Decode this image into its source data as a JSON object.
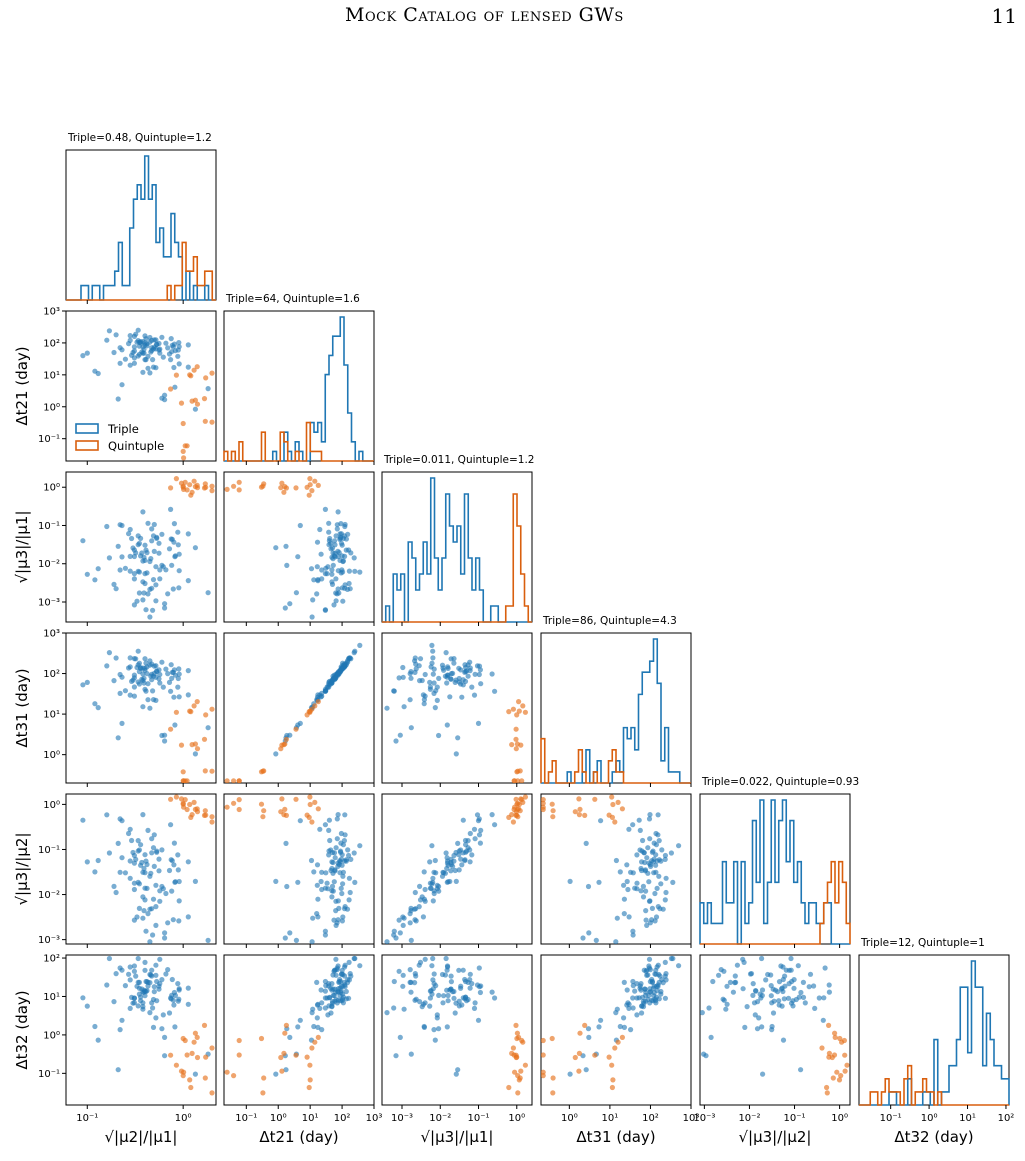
{
  "header": {
    "running_title": "Mock Catalog of lensed GWs",
    "page_number": "11"
  },
  "chart_data": {
    "type": "corner",
    "series": [
      {
        "name": "Triple",
        "color": "#1f77b4"
      },
      {
        "name": "Quintuple",
        "color": "#d95f0e"
      }
    ],
    "variables": [
      {
        "key": "mu21",
        "label": "√|μ2|/|μ1|",
        "scale": "log",
        "range": [
          0.06,
          2.2
        ],
        "ticks": [
          {
            "v": 0.1,
            "label": "10⁻¹"
          },
          {
            "v": 1,
            "label": "10⁰"
          }
        ]
      },
      {
        "key": "dt21",
        "label": "Δt21 (day)",
        "scale": "log",
        "range": [
          0.02,
          1000
        ],
        "ticks": [
          {
            "v": 0.1,
            "label": "10⁻¹"
          },
          {
            "v": 1,
            "label": "10⁰"
          },
          {
            "v": 10,
            "label": "10¹"
          },
          {
            "v": 100,
            "label": "10²"
          },
          {
            "v": 1000,
            "label": "10³"
          }
        ]
      },
      {
        "key": "mu31",
        "label": "√|μ3|/|μ1|",
        "scale": "log",
        "range": [
          0.0003,
          2.5
        ],
        "ticks": [
          {
            "v": 0.001,
            "label": "10⁻³"
          },
          {
            "v": 0.01,
            "label": "10⁻²"
          },
          {
            "v": 0.1,
            "label": "10⁻¹"
          },
          {
            "v": 1,
            "label": "10⁰"
          }
        ]
      },
      {
        "key": "dt31",
        "label": "Δt31 (day)",
        "scale": "log",
        "range": [
          0.2,
          1000
        ],
        "ticks": [
          {
            "v": 1,
            "label": "10⁰"
          },
          {
            "v": 10,
            "label": "10¹"
          },
          {
            "v": 100,
            "label": "10²"
          },
          {
            "v": 1000,
            "label": "10³"
          }
        ]
      },
      {
        "key": "mu32",
        "label": "√|μ3|/|μ2|",
        "scale": "log",
        "range": [
          0.0008,
          1.7
        ],
        "ticks": [
          {
            "v": 0.001,
            "label": "10⁻³"
          },
          {
            "v": 0.01,
            "label": "10⁻²"
          },
          {
            "v": 0.1,
            "label": "10⁻¹"
          },
          {
            "v": 1,
            "label": "10⁰"
          }
        ]
      },
      {
        "key": "dt32",
        "label": "Δt32 (day)",
        "scale": "log",
        "range": [
          0.015,
          120
        ],
        "ticks": [
          {
            "v": 0.1,
            "label": "10⁻¹"
          },
          {
            "v": 1,
            "label": "10⁰"
          },
          {
            "v": 10,
            "label": "10¹"
          },
          {
            "v": 100,
            "label": "10²"
          }
        ]
      }
    ],
    "diagonal_titles": [
      "Triple=0.48, Quintuple=1.2",
      "Triple=64, Quintuple=1.6",
      "Triple=0.011, Quintuple=1.2",
      "Triple=86, Quintuple=4.3",
      "Triple=0.022, Quintuple=0.93",
      "Triple=12, Quintuple=1"
    ],
    "legend": {
      "placement": "lower-left of panel Δt21 vs √|μ2|/|μ1|",
      "entries": [
        "Triple",
        "Quintuple"
      ]
    },
    "triple_samples": [
      [
        0.05,
        360
      ],
      [
        0.16,
        122
      ],
      [
        0.39,
        48
      ],
      [
        0.83,
        57
      ],
      [
        1.82,
        3.7
      ],
      [
        0.36,
        100
      ],
      [
        0.57,
        48
      ],
      [
        0.66,
        98
      ],
      [
        0.09,
        40
      ],
      [
        0.69,
        70
      ],
      [
        1.13,
        87
      ],
      [
        0.82,
        4.1
      ],
      [
        0.35,
        104
      ],
      [
        0.22,
        23
      ],
      [
        0.42,
        94
      ],
      [
        0.91,
        76
      ],
      [
        0.64,
        1.67
      ],
      [
        0.74,
        30
      ],
      [
        0.53,
        89
      ],
      [
        0.38,
        12
      ],
      [
        0.21,
        1.75
      ],
      [
        0.4,
        30
      ],
      [
        1.34,
        0.84
      ],
      [
        0.12,
        13
      ],
      [
        0.45,
        11.5
      ],
      [
        0.34,
        250
      ],
      [
        0.22,
        71
      ],
      [
        0.5,
        124
      ],
      [
        0.41,
        30
      ],
      [
        0.23,
        4.9
      ],
      [
        0.13,
        11
      ],
      [
        0.52,
        124
      ],
      [
        0.34,
        39
      ],
      [
        0.49,
        17.5
      ],
      [
        0.1,
        48
      ],
      [
        0.6,
        1.86
      ],
      [
        0.17,
        240
      ],
      [
        0.81,
        92
      ],
      [
        0.89,
        60
      ],
      [
        0.75,
        137
      ],
      [
        0.4,
        101
      ],
      [
        0.28,
        20
      ],
      [
        0.53,
        90
      ],
      [
        0.31,
        75
      ],
      [
        0.79,
        75
      ],
      [
        0.8,
        17
      ],
      [
        0.19,
        50
      ],
      [
        0.38,
        48
      ],
      [
        1.13,
        17.5
      ],
      [
        0.72,
        45
      ],
      [
        0.62,
        36
      ],
      [
        0.25,
        31
      ],
      [
        0.57,
        64
      ],
      [
        0.31,
        23
      ],
      [
        0.52,
        16.7
      ],
      [
        0.9,
        102
      ],
      [
        0.88,
        38
      ],
      [
        0.31,
        34
      ],
      [
        0.23,
        61
      ],
      [
        0.47,
        58
      ],
      [
        0.2,
        180
      ],
      [
        0.77,
        84
      ],
      [
        0.49,
        65
      ],
      [
        0.38,
        75
      ],
      [
        0.48,
        30
      ],
      [
        0.43,
        16
      ],
      [
        0.37,
        52
      ],
      [
        0.91,
        22
      ],
      [
        0.47,
        71
      ],
      [
        0.4,
        166
      ],
      [
        0.31,
        160
      ],
      [
        0.64,
        2.3
      ],
      [
        0.28,
        170
      ],
      [
        0.32,
        187
      ],
      [
        0.31,
        56
      ],
      [
        0.29,
        41
      ],
      [
        0.38,
        110
      ],
      [
        0.33,
        105
      ],
      [
        0.35,
        44
      ],
      [
        0.76,
        53
      ],
      [
        0.28,
        120
      ],
      [
        0.46,
        52
      ],
      [
        0.52,
        65
      ],
      [
        0.3,
        50
      ],
      [
        0.43,
        38
      ],
      [
        0.36,
        110
      ],
      [
        0.42,
        81
      ],
      [
        0.45,
        148
      ],
      [
        0.45,
        106
      ],
      [
        0.41,
        136
      ],
      [
        0.5,
        74
      ],
      [
        0.27,
        95
      ],
      [
        0.56,
        96
      ],
      [
        0.34,
        118
      ],
      [
        0.4,
        86
      ],
      [
        0.39,
        63
      ],
      [
        0.6,
        150
      ],
      [
        0.35,
        79
      ],
      [
        0.47,
        120
      ],
      [
        0.56,
        60
      ]
    ],
    "quintuple_samples": [
      [
        1.41,
        1.2
      ],
      [
        1.0,
        0.3
      ],
      [
        1.1,
        0.06
      ],
      [
        1.7,
        0.35
      ],
      [
        2.0,
        11.3
      ],
      [
        0.96,
        1.3
      ],
      [
        1.2,
        9.3
      ],
      [
        1.17,
        10
      ],
      [
        1.0,
        0.04
      ],
      [
        1.24,
        1.5
      ],
      [
        1.34,
        1.6
      ],
      [
        1.67,
        1.8
      ],
      [
        1.72,
        8
      ],
      [
        1.01,
        0.025
      ],
      [
        0.85,
        9.8
      ],
      [
        1.4,
        18
      ],
      [
        2.0,
        0.33
      ],
      [
        1.3,
        14
      ],
      [
        1.05,
        0.06
      ],
      [
        0.74,
        3.6
      ]
    ]
  }
}
